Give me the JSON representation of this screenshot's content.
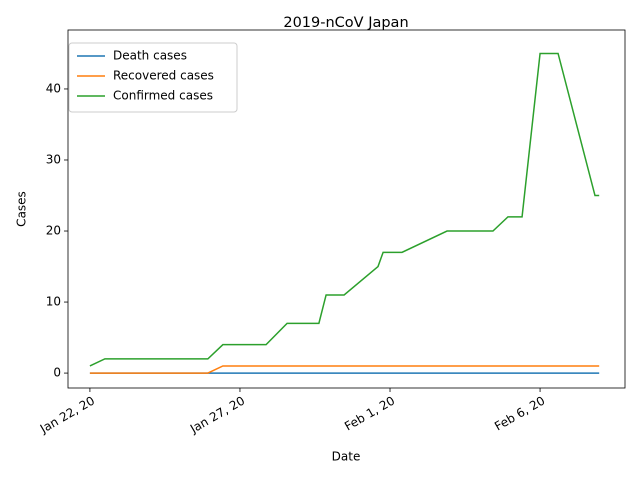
{
  "chart_data": {
    "type": "line",
    "title": "2019-nCoV Japan",
    "x_label": "Date",
    "y_label": "Cases",
    "x": [
      0,
      0.5,
      3.93,
      4.43,
      5.87,
      6.57,
      7.63,
      7.87,
      8.47,
      9.6,
      9.77,
      10.4,
      11.9,
      13.43,
      13.93,
      14.4,
      15.0,
      15.6,
      16.83,
      16.97
    ],
    "series": [
      {
        "name": "Death cases",
        "color": "#1f77b4",
        "values": [
          0,
          0,
          0,
          0,
          0,
          0,
          0,
          0,
          0,
          0,
          0,
          0,
          0,
          0,
          0,
          0,
          0,
          0,
          0,
          0
        ]
      },
      {
        "name": "Recovered cases",
        "color": "#ff7f0e",
        "values": [
          0,
          0,
          0,
          1,
          1,
          1,
          1,
          1,
          1,
          1,
          1,
          1,
          1,
          1,
          1,
          1,
          1,
          1,
          1,
          1
        ]
      },
      {
        "name": "Confirmed cases",
        "color": "#2ca02c",
        "values": [
          1,
          2,
          2,
          4,
          4,
          7,
          7,
          11,
          11,
          15,
          17,
          17,
          20,
          20,
          22,
          22,
          45,
          45,
          25,
          25
        ]
      }
    ],
    "xlim": [
      -0.73,
      17.83
    ],
    "xticks": [
      {
        "value": 0,
        "label": "Jan 22, 20"
      },
      {
        "value": 5,
        "label": "Jan 27, 20"
      },
      {
        "value": 10,
        "label": "Feb 1, 20"
      },
      {
        "value": 15,
        "label": "Feb 6, 20"
      }
    ],
    "ylim": [
      -2.1,
      48.3
    ],
    "yticks": [
      0,
      10,
      20,
      30,
      40
    ],
    "legend": "upper left"
  }
}
